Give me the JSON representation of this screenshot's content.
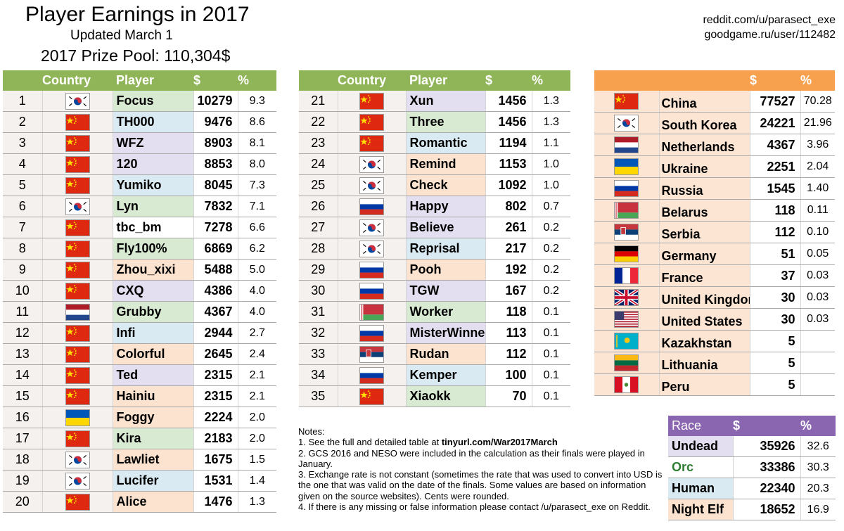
{
  "header": {
    "title": "Player Earnings in 2017",
    "updated": "Updated March 1",
    "prize_pool": "2017 Prize Pool: 110,304$",
    "credit_reddit": "reddit.com/u/parasect_exe",
    "credit_goodgame": "goodgame.ru/user/112482"
  },
  "players_table": {
    "headers": {
      "rank": "",
      "country": "Country",
      "player": "Player",
      "dollars": "$",
      "percent": "%"
    },
    "rows_left": [
      {
        "rank": "1",
        "flag": "korea",
        "player": "Focus",
        "dollars": "10279",
        "percent": "9.3",
        "player_bg": "green"
      },
      {
        "rank": "2",
        "flag": "china",
        "player": "TH000",
        "dollars": "9476",
        "percent": "8.6",
        "player_bg": "blue"
      },
      {
        "rank": "3",
        "flag": "china",
        "player": "WFZ",
        "dollars": "8903",
        "percent": "8.1",
        "player_bg": "purple"
      },
      {
        "rank": "4",
        "flag": "china",
        "player": "120",
        "dollars": "8853",
        "percent": "8.0",
        "player_bg": "purple"
      },
      {
        "rank": "5",
        "flag": "china",
        "player": "Yumiko",
        "dollars": "8045",
        "percent": "7.3",
        "player_bg": "blue"
      },
      {
        "rank": "6",
        "flag": "korea",
        "player": "Lyn",
        "dollars": "7832",
        "percent": "7.1",
        "player_bg": "green"
      },
      {
        "rank": "7",
        "flag": "china",
        "player": "tbc_bm",
        "dollars": "7278",
        "percent": "6.6",
        "player_bg": "white"
      },
      {
        "rank": "8",
        "flag": "china",
        "player": "Fly100%",
        "dollars": "6869",
        "percent": "6.2",
        "player_bg": "green"
      },
      {
        "rank": "9",
        "flag": "china",
        "player": "Zhou_xixi",
        "dollars": "5488",
        "percent": "5.0",
        "player_bg": "orange"
      },
      {
        "rank": "10",
        "flag": "china",
        "player": "CXQ",
        "dollars": "4386",
        "percent": "4.0",
        "player_bg": "purple"
      },
      {
        "rank": "11",
        "flag": "netherlands",
        "player": "Grubby",
        "dollars": "4367",
        "percent": "4.0",
        "player_bg": "green"
      },
      {
        "rank": "12",
        "flag": "china",
        "player": "Infi",
        "dollars": "2944",
        "percent": "2.7",
        "player_bg": "blue"
      },
      {
        "rank": "13",
        "flag": "china",
        "player": "Colorful",
        "dollars": "2645",
        "percent": "2.4",
        "player_bg": "orange"
      },
      {
        "rank": "14",
        "flag": "china",
        "player": "Ted",
        "dollars": "2315",
        "percent": "2.1",
        "player_bg": "purple"
      },
      {
        "rank": "15",
        "flag": "china",
        "player": "Hainiu",
        "dollars": "2315",
        "percent": "2.1",
        "player_bg": "orange"
      },
      {
        "rank": "16",
        "flag": "ukraine",
        "player": "Foggy",
        "dollars": "2224",
        "percent": "2.0",
        "player_bg": "orange"
      },
      {
        "rank": "17",
        "flag": "china",
        "player": "Kira",
        "dollars": "2183",
        "percent": "2.0",
        "player_bg": "green"
      },
      {
        "rank": "18",
        "flag": "korea",
        "player": "Lawliet",
        "dollars": "1675",
        "percent": "1.5",
        "player_bg": "orange"
      },
      {
        "rank": "19",
        "flag": "korea",
        "player": "Lucifer",
        "dollars": "1531",
        "percent": "1.4",
        "player_bg": "blue"
      },
      {
        "rank": "20",
        "flag": "china",
        "player": "Alice",
        "dollars": "1476",
        "percent": "1.3",
        "player_bg": "orange"
      }
    ],
    "rows_right": [
      {
        "rank": "21",
        "flag": "china",
        "player": "Xun",
        "dollars": "1456",
        "percent": "1.3",
        "player_bg": "purple"
      },
      {
        "rank": "22",
        "flag": "china",
        "player": "Three",
        "dollars": "1456",
        "percent": "1.3",
        "player_bg": "green"
      },
      {
        "rank": "23",
        "flag": "china",
        "player": "Romantic",
        "dollars": "1194",
        "percent": "1.1",
        "player_bg": "blue"
      },
      {
        "rank": "24",
        "flag": "korea",
        "player": "Remind",
        "dollars": "1153",
        "percent": "1.0",
        "player_bg": "orange"
      },
      {
        "rank": "25",
        "flag": "korea",
        "player": "Check",
        "dollars": "1092",
        "percent": "1.0",
        "player_bg": "orange"
      },
      {
        "rank": "26",
        "flag": "russia",
        "player": "Happy",
        "dollars": "802",
        "percent": "0.7",
        "player_bg": "purple"
      },
      {
        "rank": "27",
        "flag": "korea",
        "player": "Believe",
        "dollars": "261",
        "percent": "0.2",
        "player_bg": "purple"
      },
      {
        "rank": "28",
        "flag": "korea",
        "player": "Reprisal",
        "dollars": "217",
        "percent": "0.2",
        "player_bg": "blue"
      },
      {
        "rank": "29",
        "flag": "russia",
        "player": "Pooh",
        "dollars": "192",
        "percent": "0.2",
        "player_bg": "orange"
      },
      {
        "rank": "30",
        "flag": "russia",
        "player": "TGW",
        "dollars": "167",
        "percent": "0.2",
        "player_bg": "purple"
      },
      {
        "rank": "31",
        "flag": "belarus",
        "player": "Worker",
        "dollars": "118",
        "percent": "0.1",
        "player_bg": "green"
      },
      {
        "rank": "32",
        "flag": "russia",
        "player": "MisterWinner",
        "dollars": "113",
        "percent": "0.1",
        "player_bg": "purple"
      },
      {
        "rank": "33",
        "flag": "serbia",
        "player": "Rudan",
        "dollars": "112",
        "percent": "0.1",
        "player_bg": "orange"
      },
      {
        "rank": "34",
        "flag": "russia",
        "player": "Kemper",
        "dollars": "100",
        "percent": "0.1",
        "player_bg": "blue"
      },
      {
        "rank": "35",
        "flag": "china",
        "player": "Xiaokk",
        "dollars": "70",
        "percent": "0.1",
        "player_bg": "green"
      }
    ]
  },
  "countries_table": {
    "headers": {
      "flag": "",
      "country": "",
      "dollars": "$",
      "percent": "%"
    },
    "rows": [
      {
        "flag": "china",
        "country": "China",
        "dollars": "77527",
        "percent": "70.28"
      },
      {
        "flag": "korea",
        "country": "South Korea",
        "dollars": "24221",
        "percent": "21.96"
      },
      {
        "flag": "netherlands",
        "country": "Netherlands",
        "dollars": "4367",
        "percent": "3.96"
      },
      {
        "flag": "ukraine",
        "country": "Ukraine",
        "dollars": "2251",
        "percent": "2.04"
      },
      {
        "flag": "russia",
        "country": "Russia",
        "dollars": "1545",
        "percent": "1.40"
      },
      {
        "flag": "belarus",
        "country": "Belarus",
        "dollars": "118",
        "percent": "0.11"
      },
      {
        "flag": "serbia",
        "country": "Serbia",
        "dollars": "112",
        "percent": "0.10"
      },
      {
        "flag": "germany",
        "country": "Germany",
        "dollars": "51",
        "percent": "0.05"
      },
      {
        "flag": "france",
        "country": "France",
        "dollars": "37",
        "percent": "0.03"
      },
      {
        "flag": "uk",
        "country": "United Kingdom",
        "dollars": "30",
        "percent": "0.03"
      },
      {
        "flag": "usa",
        "country": "United States",
        "dollars": "30",
        "percent": "0.03"
      },
      {
        "flag": "kazakhstan",
        "country": "Kazakhstan",
        "dollars": "5",
        "percent": ""
      },
      {
        "flag": "lithuania",
        "country": "Lithuania",
        "dollars": "5",
        "percent": ""
      },
      {
        "flag": "peru",
        "country": "Peru",
        "dollars": "5",
        "percent": ""
      }
    ]
  },
  "race_table": {
    "headers": {
      "race": "Race",
      "dollars": "$",
      "percent": "%"
    },
    "rows": [
      {
        "race": "Undead",
        "dollars": "35926",
        "percent": "32.6",
        "race_bg": "purple"
      },
      {
        "race": "Orc",
        "dollars": "33386",
        "percent": "30.3",
        "race_bg": "white",
        "race_color": "#2e7d32"
      },
      {
        "race": "Human",
        "dollars": "22340",
        "percent": "20.3",
        "race_bg": "blue"
      },
      {
        "race": "Night Elf",
        "dollars": "18652",
        "percent": "16.9",
        "race_bg": "orange"
      }
    ]
  },
  "notes": {
    "heading": "Notes:",
    "note1_prefix": "1. See the full and detailed table at ",
    "note1_link": "tinyurl.com/War2017March",
    "note2": "2. GCS 2016 and NESO were included in the calculation as their finals were played in January.",
    "note3": "3. Exchange rate is not constant (sometimes the rate that was used to convert into USD is the one that was valid on the date of the finals. Some values are based on information given on the source websites). Cents were rounded.",
    "note4": "4. If there is any missing or false information please contact /u/parasect_exe on Reddit."
  },
  "colors": {
    "green_header": "#90b558",
    "orange_header": "#f7a14e",
    "purple_header": "#8a65b0",
    "row_bg": "#f5f1ee",
    "player_green": "#d9ead3",
    "player_blue": "#daeaf2",
    "player_purple": "#e4dff0",
    "player_orange": "#fbe3d0",
    "player_white": "#ffffff",
    "country_row": "#fde5d4"
  }
}
